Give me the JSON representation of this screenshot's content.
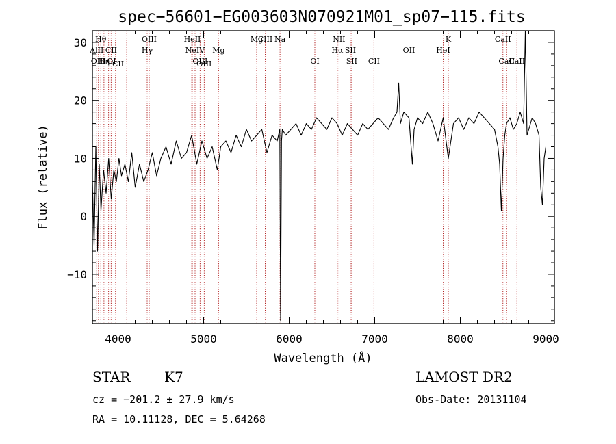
{
  "chart_data": {
    "type": "line",
    "title": "spec−56601−EG003603N070921M01_sp07−115.fits",
    "xlabel": "Wavelength (Å)",
    "ylabel": "Flux (relative)",
    "xlim": [
      3700,
      9100
    ],
    "ylim": [
      -18.5,
      32
    ],
    "x_ticks": [
      {
        "value": 4000,
        "label": "4000"
      },
      {
        "value": 5000,
        "label": "5000"
      },
      {
        "value": 6000,
        "label": "6000"
      },
      {
        "value": 7000,
        "label": "7000"
      },
      {
        "value": 8000,
        "label": "8000"
      },
      {
        "value": 9000,
        "label": "9000"
      }
    ],
    "y_ticks": [
      {
        "value": -10,
        "label": "−10"
      },
      {
        "value": 0,
        "label": "0"
      },
      {
        "value": 10,
        "label": "10"
      },
      {
        "value": 20,
        "label": "20"
      },
      {
        "value": 30,
        "label": "30"
      }
    ],
    "grid": false,
    "series": [
      {
        "x": [
          3700,
          3720,
          3740,
          3760,
          3780,
          3800,
          3830,
          3860,
          3890,
          3920,
          3950,
          3980,
          4010,
          4040,
          4080,
          4120,
          4160,
          4200,
          4250,
          4300,
          4350,
          4400,
          4450,
          4500,
          4560,
          4620,
          4680,
          4740,
          4800,
          4860,
          4920,
          4980,
          5040,
          5100,
          5160,
          5200,
          5260,
          5320,
          5380,
          5440,
          5500,
          5560,
          5620,
          5680,
          5740,
          5800,
          5860,
          5890,
          5900,
          5910,
          5920,
          5960,
          6020,
          6080,
          6140,
          6200,
          6260,
          6320,
          6380,
          6440,
          6500,
          6560,
          6620,
          6680,
          6740,
          6800,
          6860,
          6920,
          6980,
          7040,
          7100,
          7160,
          7220,
          7260,
          7280,
          7300,
          7340,
          7400,
          7440,
          7460,
          7500,
          7560,
          7620,
          7680,
          7740,
          7800,
          7860,
          7920,
          7980,
          8040,
          8100,
          8160,
          8220,
          8280,
          8340,
          8400,
          8440,
          8460,
          8480,
          8500,
          8520,
          8540,
          8580,
          8620,
          8660,
          8700,
          8740,
          8760,
          8780,
          8800,
          8840,
          8880,
          8920,
          8940,
          8960,
          8980,
          9000
        ],
        "y": [
          6,
          -5,
          12,
          -6,
          9,
          1,
          8,
          4,
          10,
          3,
          8,
          6,
          10,
          7,
          9,
          6,
          11,
          5,
          9,
          6,
          8,
          11,
          7,
          10,
          12,
          9,
          13,
          10,
          11,
          14,
          9,
          13,
          10,
          12,
          8,
          12,
          13,
          11,
          14,
          12,
          15,
          13,
          14,
          15,
          11,
          14,
          13,
          15,
          -18,
          13,
          15,
          14,
          15,
          16,
          14,
          16,
          15,
          17,
          16,
          15,
          17,
          16,
          14,
          16,
          15,
          14,
          16,
          15,
          16,
          17,
          16,
          15,
          17,
          18,
          23,
          16,
          18,
          17,
          9,
          15,
          17,
          16,
          18,
          16,
          13,
          17,
          10,
          16,
          17,
          15,
          17,
          16,
          18,
          17,
          16,
          15,
          12,
          9,
          1,
          10,
          14,
          16,
          17,
          15,
          16,
          18,
          16,
          33,
          14,
          15,
          17,
          16,
          14,
          5,
          2,
          10,
          12
        ]
      }
    ],
    "spectral_lines": [
      {
        "label": "Hθ",
        "wavelength": 3798,
        "row": 1
      },
      {
        "label": "AlII",
        "wavelength": 3750,
        "row": 2
      },
      {
        "label": "OIII",
        "wavelength": 3770,
        "row": 3
      },
      {
        "label": "Hη",
        "wavelength": 3835,
        "row": 3
      },
      {
        "label": "CII",
        "wavelength": 3919,
        "row": 2
      },
      {
        "label": "OI",
        "wavelength": 3923,
        "row": 3
      },
      {
        "label": "CII",
        "wavelength": 4000,
        "row": 0
      },
      {
        "label": "OIII",
        "wavelength": 4364,
        "row": 1
      },
      {
        "label": "Hγ",
        "wavelength": 4340,
        "row": 2
      },
      {
        "label": "HeII",
        "wavelength": 4868,
        "row": 1
      },
      {
        "label": "NeIV",
        "wavelength": 4900,
        "row": 2
      },
      {
        "label": "OIII",
        "wavelength": 4959,
        "row": 3
      },
      {
        "label": "OIII",
        "wavelength": 5007,
        "row": 0
      },
      {
        "label": "Mg",
        "wavelength": 5175,
        "row": 2
      },
      {
        "label": "Mg",
        "wavelength": 5620,
        "row": 1
      },
      {
        "label": "CIII",
        "wavelength": 5720,
        "row": 1
      },
      {
        "label": "Na",
        "wavelength": 5893,
        "row": 1
      },
      {
        "label": "OI",
        "wavelength": 6300,
        "row": 3
      },
      {
        "label": "NII",
        "wavelength": 6583,
        "row": 1
      },
      {
        "label": "Hα",
        "wavelength": 6563,
        "row": 2
      },
      {
        "label": "SII",
        "wavelength": 6716,
        "row": 2
      },
      {
        "label": "SII",
        "wavelength": 6731,
        "row": 3
      },
      {
        "label": "CII",
        "wavelength": 6991,
        "row": 3
      },
      {
        "label": "OII",
        "wavelength": 7400,
        "row": 2
      },
      {
        "label": "HeI",
        "wavelength": 7800,
        "row": 2
      },
      {
        "label": "K",
        "wavelength": 7860,
        "row": 1
      },
      {
        "label": "CaII",
        "wavelength": 8498,
        "row": 1
      },
      {
        "label": "CaII",
        "wavelength": 8542,
        "row": 3
      },
      {
        "label": "CaII",
        "wavelength": 8662,
        "row": 3
      }
    ],
    "line_marker_wavelengths": [
      3750,
      3770,
      3798,
      3835,
      3889,
      3919,
      3970,
      4000,
      4101,
      4340,
      4364,
      4861,
      4868,
      4900,
      4959,
      5007,
      5175,
      5620,
      5720,
      5893,
      6300,
      6563,
      6583,
      6716,
      6731,
      6991,
      7400,
      7800,
      7860,
      8498,
      8542,
      8662
    ]
  },
  "info": {
    "object_class": "STAR",
    "subclass": "K7",
    "survey": "LAMOST DR2",
    "cz": "cz = −201.2 ± 27.9 km/s",
    "obs_date": "Obs-Date: 20131104",
    "radec": "RA =  10.11128, DEC =   5.64268"
  }
}
